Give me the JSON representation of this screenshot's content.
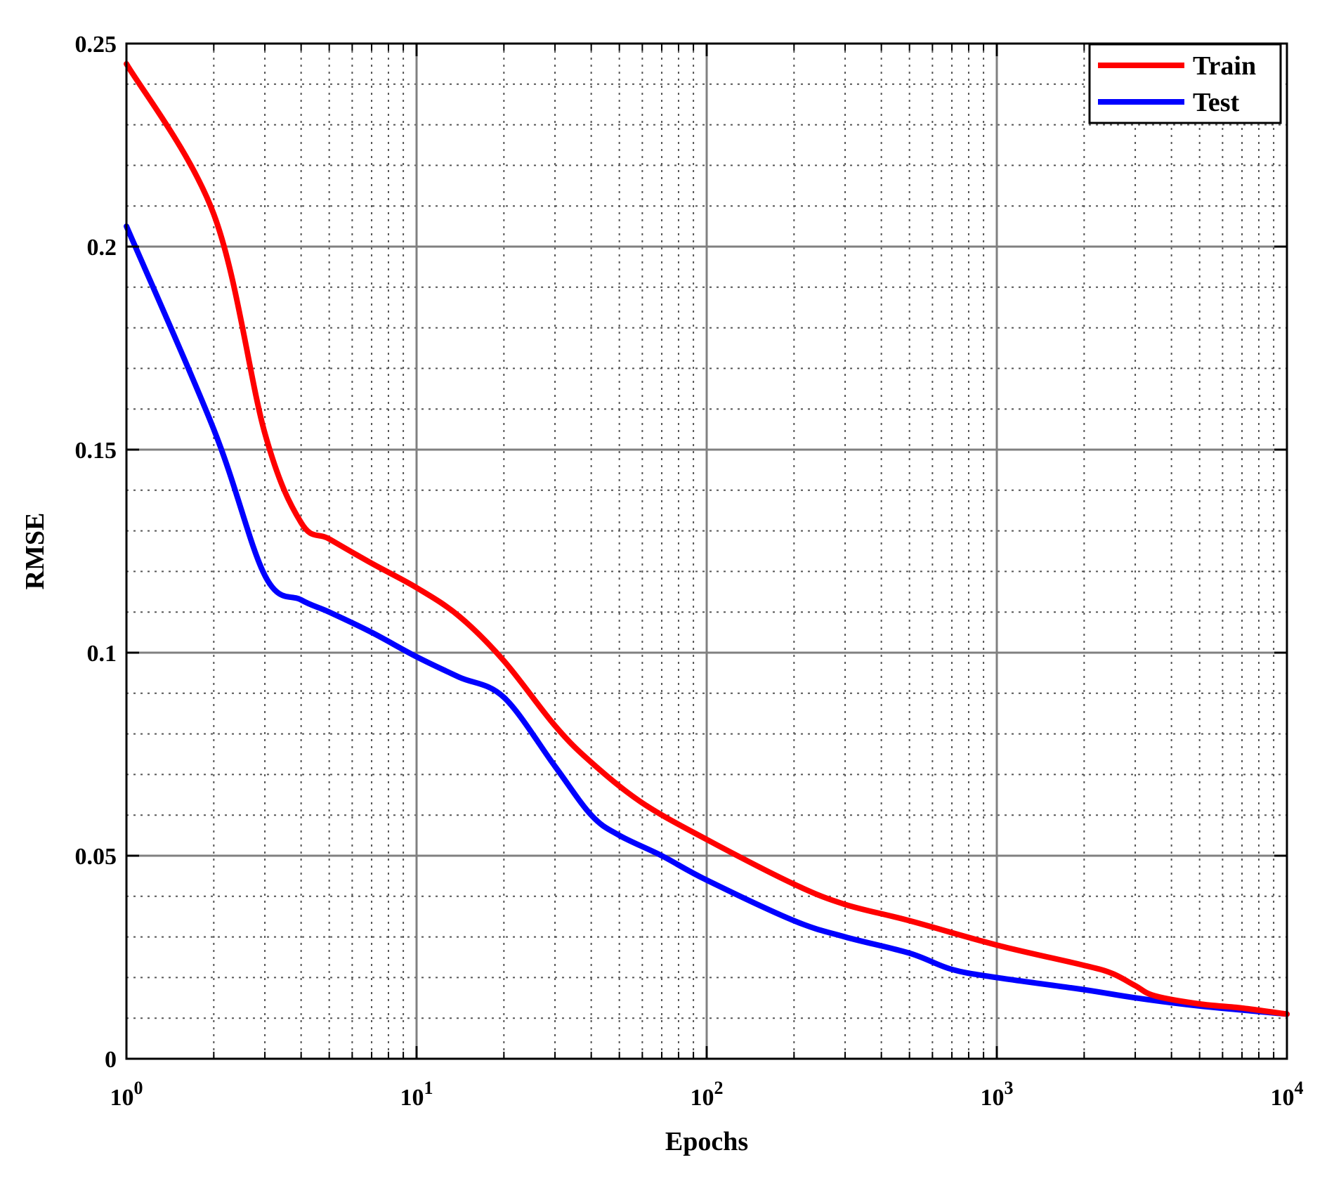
{
  "chart_data": {
    "type": "line",
    "title": "",
    "xlabel": "Epochs",
    "ylabel": "RMSE",
    "xscale": "log",
    "xlim": [
      1,
      10000
    ],
    "ylim": [
      0,
      0.25
    ],
    "grid": true,
    "minor_grid": true,
    "legend_position": "top-right",
    "x_ticks": [
      {
        "base": "10",
        "exp": "0",
        "value": 1
      },
      {
        "base": "10",
        "exp": "1",
        "value": 10
      },
      {
        "base": "10",
        "exp": "2",
        "value": 100
      },
      {
        "base": "10",
        "exp": "3",
        "value": 1000
      },
      {
        "base": "10",
        "exp": "4",
        "value": 10000
      }
    ],
    "y_ticks": [
      {
        "label": "0",
        "value": 0
      },
      {
        "label": "0.05",
        "value": 0.05
      },
      {
        "label": "0.1",
        "value": 0.1
      },
      {
        "label": "0.15",
        "value": 0.15
      },
      {
        "label": "0.2",
        "value": 0.2
      },
      {
        "label": "0.25",
        "value": 0.25
      }
    ],
    "series": [
      {
        "name": "Train",
        "color": "#ff0000",
        "x": [
          1,
          2,
          3,
          4,
          5,
          7,
          10,
          14,
          20,
          30,
          40,
          60,
          100,
          200,
          300,
          500,
          1000,
          2000,
          2500,
          3000,
          3500,
          5000,
          7000,
          10000
        ],
        "y": [
          0.245,
          0.208,
          0.154,
          0.132,
          0.128,
          0.122,
          0.116,
          0.109,
          0.098,
          0.082,
          0.073,
          0.063,
          0.054,
          0.043,
          0.038,
          0.034,
          0.028,
          0.023,
          0.021,
          0.018,
          0.0155,
          0.0135,
          0.0125,
          0.011
        ]
      },
      {
        "name": "Test",
        "color": "#0000ff",
        "x": [
          1,
          2,
          3,
          4,
          5,
          7,
          10,
          14,
          20,
          30,
          40,
          50,
          70,
          100,
          200,
          300,
          500,
          700,
          1000,
          2000,
          3000,
          5000,
          10000
        ],
        "y": [
          0.205,
          0.155,
          0.119,
          0.113,
          0.11,
          0.105,
          0.099,
          0.094,
          0.089,
          0.072,
          0.06,
          0.055,
          0.05,
          0.044,
          0.034,
          0.03,
          0.026,
          0.022,
          0.02,
          0.017,
          0.015,
          0.013,
          0.011
        ]
      }
    ]
  }
}
